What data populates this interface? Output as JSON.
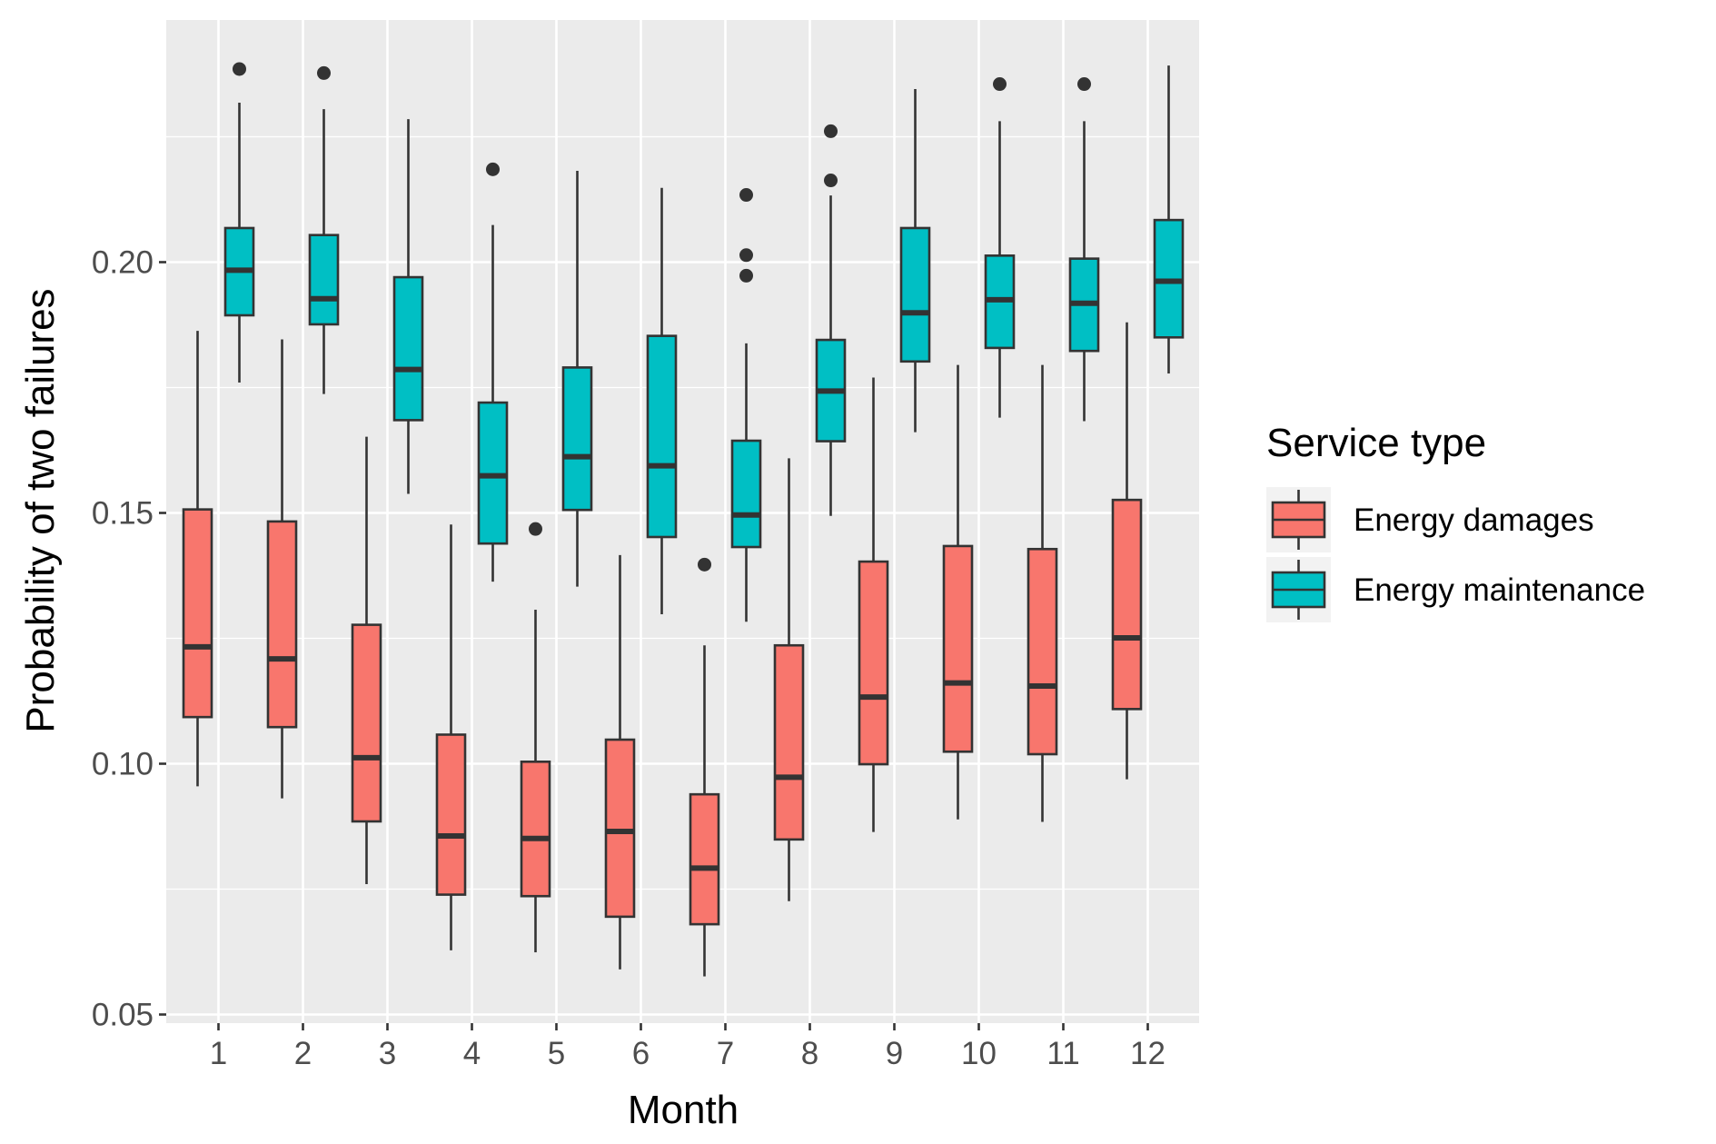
{
  "chart_data": {
    "type": "boxplot",
    "xlabel": "Month",
    "ylabel": "Probability of two failures",
    "categories": [
      "1",
      "2",
      "3",
      "4",
      "5",
      "6",
      "7",
      "8",
      "9",
      "10",
      "11",
      "12"
    ],
    "yticks": [
      "0.05",
      "0.10",
      "0.15",
      "0.20"
    ],
    "ylim": [
      0.05,
      0.2495
    ],
    "grid": true,
    "legend": {
      "title": "Service type",
      "position": "right"
    },
    "series": [
      {
        "name": "Energy damages",
        "color": "#F8766D",
        "boxes": [
          {
            "month": "1",
            "min": 0.0955,
            "q1": 0.1093,
            "median": 0.1233,
            "q3": 0.1507,
            "max": 0.1863,
            "outliers": []
          },
          {
            "month": "2",
            "min": 0.0931,
            "q1": 0.1073,
            "median": 0.1209,
            "q3": 0.1483,
            "max": 0.1846,
            "outliers": []
          },
          {
            "month": "3",
            "min": 0.076,
            "q1": 0.0885,
            "median": 0.1012,
            "q3": 0.1277,
            "max": 0.1652,
            "outliers": []
          },
          {
            "month": "4",
            "min": 0.0628,
            "q1": 0.0739,
            "median": 0.0856,
            "q3": 0.1058,
            "max": 0.1477,
            "outliers": []
          },
          {
            "month": "5",
            "min": 0.0624,
            "q1": 0.0736,
            "median": 0.0851,
            "q3": 0.1004,
            "max": 0.1307,
            "outliers": [
              0.1468
            ]
          },
          {
            "month": "6",
            "min": 0.059,
            "q1": 0.0695,
            "median": 0.0865,
            "q3": 0.1048,
            "max": 0.1416,
            "outliers": []
          },
          {
            "month": "7",
            "min": 0.0576,
            "q1": 0.068,
            "median": 0.0792,
            "q3": 0.0939,
            "max": 0.1236,
            "outliers": [
              0.1397
            ]
          },
          {
            "month": "8",
            "min": 0.0726,
            "q1": 0.0849,
            "median": 0.0973,
            "q3": 0.1236,
            "max": 0.1609,
            "outliers": []
          },
          {
            "month": "9",
            "min": 0.0864,
            "q1": 0.0999,
            "median": 0.1133,
            "q3": 0.1403,
            "max": 0.177,
            "outliers": []
          },
          {
            "month": "10",
            "min": 0.0889,
            "q1": 0.1024,
            "median": 0.1161,
            "q3": 0.1434,
            "max": 0.1795,
            "outliers": []
          },
          {
            "month": "11",
            "min": 0.0884,
            "q1": 0.1019,
            "median": 0.1155,
            "q3": 0.1428,
            "max": 0.1795,
            "outliers": []
          },
          {
            "month": "12",
            "min": 0.0969,
            "q1": 0.1109,
            "median": 0.1251,
            "q3": 0.1526,
            "max": 0.188,
            "outliers": []
          }
        ]
      },
      {
        "name": "Energy maintenance",
        "color": "#00BFC4",
        "boxes": [
          {
            "month": "1",
            "min": 0.176,
            "q1": 0.1894,
            "median": 0.1984,
            "q3": 0.2068,
            "max": 0.2318,
            "outliers": [
              0.2385
            ]
          },
          {
            "month": "2",
            "min": 0.1737,
            "q1": 0.1876,
            "median": 0.1927,
            "q3": 0.2054,
            "max": 0.2305,
            "outliers": [
              0.2377
            ]
          },
          {
            "month": "3",
            "min": 0.1538,
            "q1": 0.1685,
            "median": 0.1786,
            "q3": 0.197,
            "max": 0.2285,
            "outliers": []
          },
          {
            "month": "4",
            "min": 0.1363,
            "q1": 0.1439,
            "median": 0.1574,
            "q3": 0.172,
            "max": 0.2074,
            "outliers": [
              0.2185
            ]
          },
          {
            "month": "5",
            "min": 0.1353,
            "q1": 0.1506,
            "median": 0.1612,
            "q3": 0.179,
            "max": 0.2182,
            "outliers": []
          },
          {
            "month": "6",
            "min": 0.1298,
            "q1": 0.1452,
            "median": 0.1594,
            "q3": 0.1853,
            "max": 0.2148,
            "outliers": []
          },
          {
            "month": "7",
            "min": 0.1283,
            "q1": 0.1432,
            "median": 0.1496,
            "q3": 0.1644,
            "max": 0.1838,
            "outliers": [
              0.1973,
              0.2014,
              0.2134
            ]
          },
          {
            "month": "8",
            "min": 0.1494,
            "q1": 0.1643,
            "median": 0.1743,
            "q3": 0.1845,
            "max": 0.2133,
            "outliers": [
              0.2163,
              0.2261
            ]
          },
          {
            "month": "9",
            "min": 0.1661,
            "q1": 0.1802,
            "median": 0.1899,
            "q3": 0.2068,
            "max": 0.2345,
            "outliers": []
          },
          {
            "month": "10",
            "min": 0.169,
            "q1": 0.1829,
            "median": 0.1925,
            "q3": 0.2013,
            "max": 0.2281,
            "outliers": [
              0.2355
            ]
          },
          {
            "month": "11",
            "min": 0.1683,
            "q1": 0.1823,
            "median": 0.1918,
            "q3": 0.2007,
            "max": 0.2281,
            "outliers": [
              0.2355
            ]
          },
          {
            "month": "12",
            "min": 0.1778,
            "q1": 0.185,
            "median": 0.1962,
            "q3": 0.2084,
            "max": 0.2392,
            "outliers": []
          }
        ]
      }
    ]
  }
}
